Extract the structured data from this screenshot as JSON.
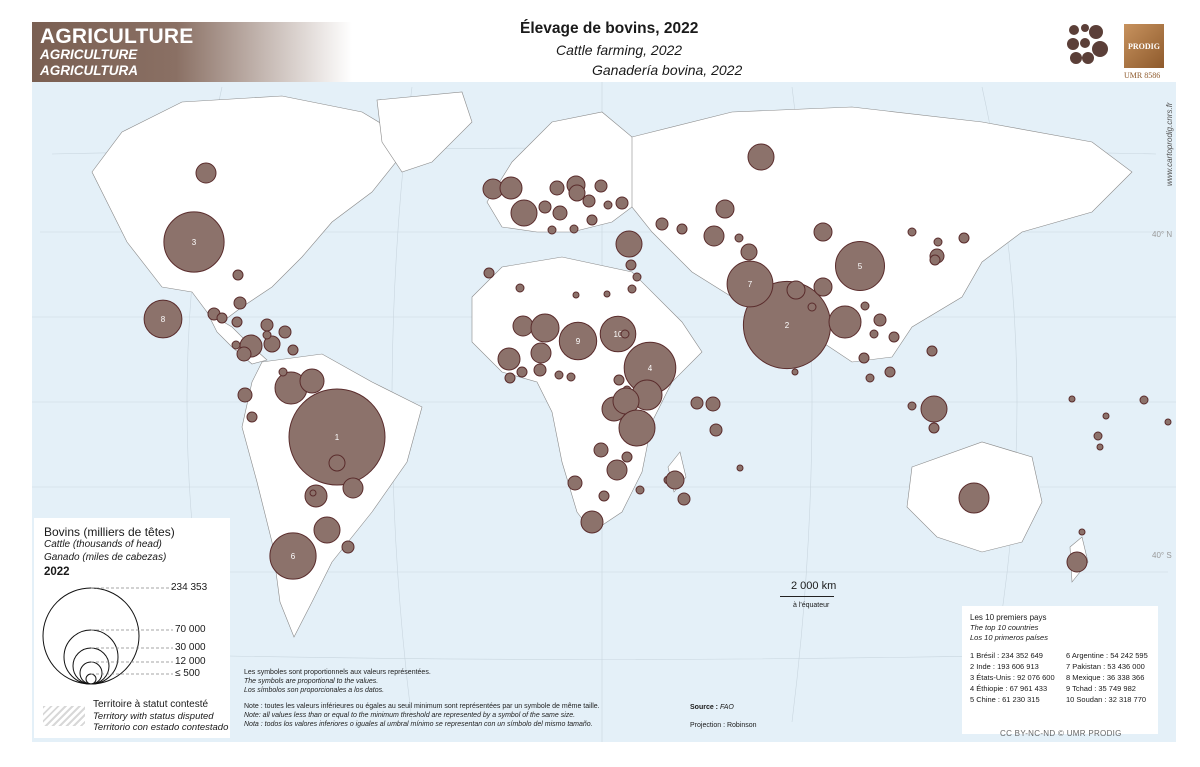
{
  "header": {
    "category_fr": "AGRICULTURE",
    "category_en": "AGRICULTURE",
    "category_es": "AGRICULTURA",
    "title_fr": "Élevage de bovins, 2022",
    "title_en": "Cattle farming, 2022",
    "title_es": "Ganadería bovina, 2022"
  },
  "logo": {
    "text": "PRODIG",
    "umr": "UMR 8586"
  },
  "url": "www.cartoprodig.cnrs.fr",
  "lat_labels": [
    "40° N",
    "40° S"
  ],
  "legend": {
    "title_fr": "Bovins (milliers de têtes)",
    "title_en": "Cattle (thousands of head)",
    "title_es": "Ganado (miles de cabezas)",
    "year": "2022",
    "values": [
      "234 353",
      "70 000",
      "30 000",
      "12 000",
      "≤ 500"
    ],
    "disputed_fr": "Territoire à statut contesté",
    "disputed_en": "Territory with status disputed",
    "disputed_es": "Territorio con estado contestado"
  },
  "notes": {
    "prop_fr": "Les symboles sont proportionnels aux valeurs représentées.",
    "prop_en": "The symbols are proportional to the values.",
    "prop_es": "Los símbolos son proporcionales a los datos.",
    "min_fr": "Note : toutes les valeurs inférieures ou égales au seuil minimum sont représentées par un symbole de même taille.",
    "min_en": "Note: all values less than or equal to the minimum threshold are represented by a symbol of the same size.",
    "min_es": "Nota : todos los valores inferiores o iguales al umbral mínimo se representan con un símbolo del mismo tamaño."
  },
  "scale": {
    "value": "2 000 km",
    "note": "à l'équateur"
  },
  "top10": {
    "title_fr": "Les 10 premiers pays",
    "title_en": "The top 10 countries",
    "title_es": "Los 10 primeros países",
    "rows": [
      "1  Brésil : 234 352 649",
      "2  Inde : 193 606 913",
      "3  États-Unis : 92 076 600",
      "4  Éthiopie : 67 961 433",
      "5  Chine : 61 230 315",
      "6  Argentine : 54 242 595",
      "7  Pakistan : 53 436 000",
      "8  Mexique : 36 338 366",
      "9  Tchad : 35 749 982",
      "10  Soudan : 32 318 770"
    ]
  },
  "source_label": "Source :",
  "source_value": "FAO",
  "projection": "Projection : Robinson",
  "license": "CC BY-NC-ND  © UMR PRODIG",
  "map_data": {
    "symbol_color": "#8c726b",
    "symbol_stroke": "#5a2c2c",
    "land_color": "#ffffff",
    "ocean_color": "#e4f0f8",
    "ranked": [
      {
        "rank": "1",
        "country": "Brésil",
        "value": 234352649
      },
      {
        "rank": "2",
        "country": "Inde",
        "value": 193606913
      },
      {
        "rank": "3",
        "country": "États-Unis",
        "value": 92076600
      },
      {
        "rank": "4",
        "country": "Éthiopie",
        "value": 67961433
      },
      {
        "rank": "5",
        "country": "Chine",
        "value": 61230315
      },
      {
        "rank": "6",
        "country": "Argentine",
        "value": 54242595
      },
      {
        "rank": "7",
        "country": "Pakistan",
        "value": 53436000
      },
      {
        "rank": "8",
        "country": "Mexique",
        "value": 36338366
      },
      {
        "rank": "9",
        "country": "Tchad",
        "value": 35749982
      },
      {
        "rank": "10",
        "country": "Soudan",
        "value": 32318770
      }
    ]
  }
}
